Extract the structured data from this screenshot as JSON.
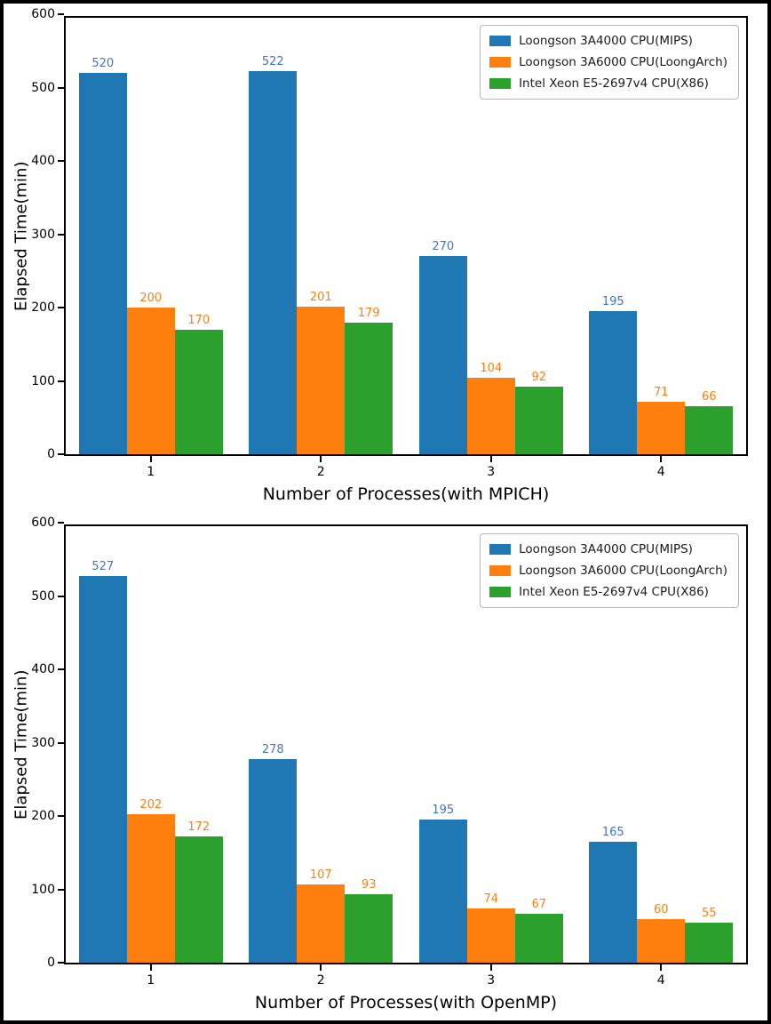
{
  "chart_data": [
    {
      "type": "bar",
      "title": "",
      "xlabel": "Number of Processes(with MPICH)",
      "ylabel": "Elapsed Time(min)",
      "ylim": [
        0,
        600
      ],
      "yticks": [
        0,
        100,
        200,
        300,
        400,
        500,
        600
      ],
      "categories": [
        "1",
        "2",
        "3",
        "4"
      ],
      "series": [
        {
          "name": "Loongson 3A4000 CPU(MIPS)",
          "color": "#1f77b4",
          "label_color": "#4472c4",
          "values": [
            520,
            522,
            270,
            195
          ]
        },
        {
          "name": "Loongson 3A6000 CPU(LoongArch)",
          "color": "#ff7f0e",
          "label_color": "#ff7f0e",
          "values": [
            200,
            201,
            104,
            71
          ]
        },
        {
          "name": "Intel Xeon E5-2697v4 CPU(X86)",
          "color": "#2ca02c",
          "label_color": "#ff7f0e",
          "values": [
            170,
            179,
            92,
            66
          ]
        }
      ],
      "legend_position": "upper right",
      "grid": false
    },
    {
      "type": "bar",
      "title": "",
      "xlabel": "Number of Processes(with OpenMP)",
      "ylabel": "Elapsed Time(min)",
      "ylim": [
        0,
        600
      ],
      "yticks": [
        0,
        100,
        200,
        300,
        400,
        500,
        600
      ],
      "categories": [
        "1",
        "2",
        "3",
        "4"
      ],
      "series": [
        {
          "name": "Loongson 3A4000 CPU(MIPS)",
          "color": "#1f77b4",
          "label_color": "#4472c4",
          "values": [
            527,
            278,
            195,
            165
          ]
        },
        {
          "name": "Loongson 3A6000 CPU(LoongArch)",
          "color": "#ff7f0e",
          "label_color": "#ff7f0e",
          "values": [
            202,
            107,
            74,
            60
          ]
        },
        {
          "name": "Intel Xeon E5-2697v4 CPU(X86)",
          "color": "#2ca02c",
          "label_color": "#ff7f0e",
          "values": [
            172,
            93,
            67,
            55
          ]
        }
      ],
      "legend_position": "upper right",
      "grid": false
    }
  ]
}
